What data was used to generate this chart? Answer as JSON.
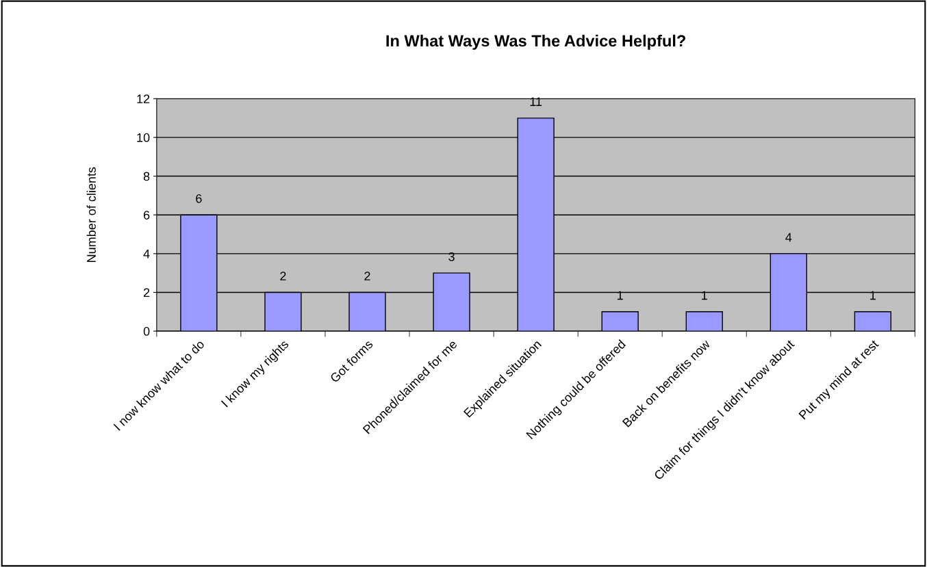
{
  "chart_data": {
    "type": "bar",
    "title": "In What Ways Was The Advice Helpful?",
    "ylabel": "Number of clients",
    "categories": [
      "I now know what to do",
      "I know my rights",
      "Got forms",
      "Phoned/claimed for me",
      "Explained situation",
      "Nothing could be offered",
      "Back on benefits now",
      "Claim for things I didn't know about",
      "Put my mind at rest"
    ],
    "values": [
      6,
      2,
      2,
      3,
      11,
      1,
      1,
      4,
      1
    ],
    "color": "#9999ff",
    "ylim": [
      0,
      12
    ],
    "yticks": [
      0,
      2,
      4,
      6,
      8,
      10,
      12
    ],
    "grid": "y",
    "data_labels": true
  }
}
